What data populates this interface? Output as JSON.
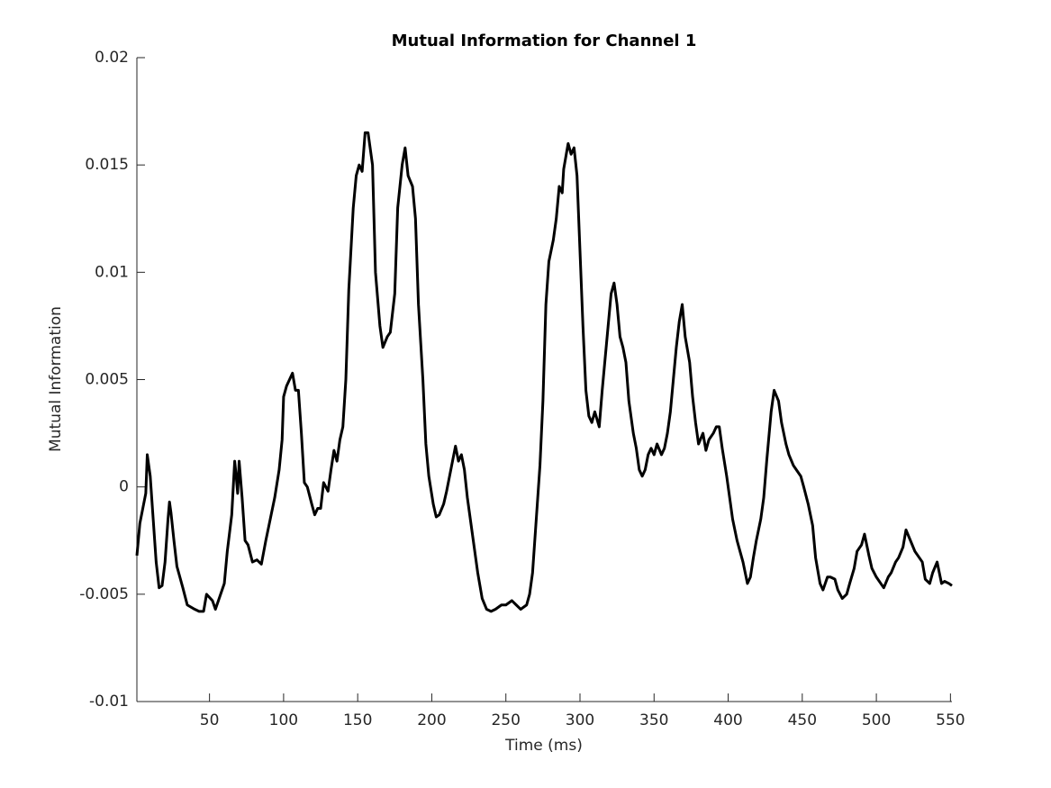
{
  "chart_data": {
    "type": "line",
    "title": "Mutual Information for Channel 1",
    "xlabel": "Time (ms)",
    "ylabel": "Mutual Information",
    "color": "#000000",
    "xlim": [
      1,
      551
    ],
    "xticks": [
      50,
      100,
      150,
      200,
      250,
      300,
      350,
      400,
      450,
      500,
      550
    ],
    "ylim": [
      -0.01,
      0.02
    ],
    "yticks": [
      -0.01,
      -0.005,
      0,
      0.005,
      0.01,
      0.015,
      0.02
    ],
    "grid": false,
    "x": [
      1,
      3,
      5,
      7,
      8,
      10,
      12,
      14,
      16,
      18,
      20,
      22,
      23,
      24,
      26,
      28,
      30,
      32,
      35,
      40,
      43,
      46,
      48,
      52,
      54,
      56,
      60,
      62,
      65,
      67,
      68,
      69,
      70,
      72,
      74,
      76,
      79,
      82,
      85,
      88,
      91,
      94,
      97,
      99,
      100,
      102,
      104,
      106,
      108,
      110,
      112,
      114,
      116,
      119,
      121,
      123,
      125,
      127,
      130,
      132,
      134,
      136,
      138,
      140,
      142,
      144,
      147,
      149,
      151,
      153,
      155,
      157,
      160,
      162,
      165,
      167,
      170,
      172,
      175,
      177,
      180,
      182,
      184,
      187,
      189,
      191,
      194,
      196,
      198,
      201,
      203,
      205,
      208,
      210,
      212,
      216,
      218,
      220,
      222,
      224,
      228,
      231,
      234,
      237,
      240,
      243,
      247,
      250,
      254,
      257,
      260,
      264,
      266,
      268,
      270,
      273,
      275,
      277,
      279,
      282,
      284,
      286,
      288,
      289,
      292,
      294,
      296,
      298,
      300,
      302,
      304,
      306,
      308,
      310,
      313,
      315,
      317,
      319,
      321,
      323,
      325,
      327,
      329,
      331,
      333,
      336,
      338,
      340,
      342,
      344,
      346,
      348,
      350,
      352,
      355,
      357,
      359,
      361,
      363,
      365,
      367,
      369,
      371,
      374,
      376,
      378,
      380,
      383,
      385,
      387,
      390,
      392,
      394,
      396,
      399,
      401,
      403,
      406,
      408,
      410,
      413,
      415,
      417,
      419,
      422,
      424,
      426,
      429,
      431,
      434,
      436,
      439,
      441,
      444,
      446,
      449,
      451,
      454,
      457,
      459,
      462,
      464,
      467,
      469,
      472,
      474,
      477,
      480,
      482,
      485,
      487,
      490,
      492,
      495,
      497,
      500,
      503,
      505,
      508,
      510,
      513,
      515,
      518,
      520,
      523,
      526,
      528,
      531,
      533,
      536,
      538,
      541,
      544,
      546,
      549,
      551
    ],
    "values": [
      -0.0032,
      -0.0017,
      -0.001,
      -0.0003,
      0.0015,
      0.0005,
      -0.0015,
      -0.0035,
      -0.0047,
      -0.0046,
      -0.0035,
      -0.0015,
      -0.0007,
      -0.0012,
      -0.0025,
      -0.0037,
      -0.0042,
      -0.0047,
      -0.0055,
      -0.0057,
      -0.0058,
      -0.0058,
      -0.005,
      -0.0053,
      -0.0057,
      -0.0053,
      -0.0045,
      -0.003,
      -0.0013,
      0.0012,
      0.0005,
      -0.0003,
      0.0012,
      -0.0005,
      -0.0025,
      -0.0027,
      -0.0035,
      -0.0034,
      -0.0036,
      -0.0025,
      -0.0015,
      -0.0005,
      0.0008,
      0.0022,
      0.0042,
      0.0047,
      0.005,
      0.0053,
      0.0045,
      0.0045,
      0.0025,
      0.0002,
      0,
      -0.0008,
      -0.0013,
      -0.001,
      -0.001,
      0.0002,
      -0.0002,
      0.0008,
      0.0017,
      0.0012,
      0.0022,
      0.0028,
      0.005,
      0.0092,
      0.013,
      0.0145,
      0.015,
      0.0147,
      0.0165,
      0.0165,
      0.015,
      0.01,
      0.0075,
      0.0065,
      0.007,
      0.0072,
      0.009,
      0.013,
      0.015,
      0.0158,
      0.0145,
      0.014,
      0.0125,
      0.0085,
      0.005,
      0.002,
      0.0005,
      -0.0008,
      -0.0014,
      -0.0013,
      -0.0008,
      -0.0002,
      0.0005,
      0.0019,
      0.0012,
      0.0015,
      0.0008,
      -0.0005,
      -0.0025,
      -0.004,
      -0.0052,
      -0.0057,
      -0.0058,
      -0.0057,
      -0.0055,
      -0.0055,
      -0.0053,
      -0.0055,
      -0.0057,
      -0.0055,
      -0.005,
      -0.004,
      -0.002,
      0.001,
      0.004,
      0.0085,
      0.0105,
      0.0115,
      0.0125,
      0.014,
      0.0137,
      0.0148,
      0.016,
      0.0155,
      0.0158,
      0.0145,
      0.011,
      0.0075,
      0.0045,
      0.0033,
      0.003,
      0.0035,
      0.0028,
      0.0045,
      0.006,
      0.0075,
      0.009,
      0.0095,
      0.0085,
      0.007,
      0.0065,
      0.0058,
      0.004,
      0.0025,
      0.0018,
      0.0008,
      0.0005,
      0.0008,
      0.0015,
      0.0018,
      0.0015,
      0.002,
      0.0015,
      0.0018,
      0.0025,
      0.0035,
      0.005,
      0.0065,
      0.0077,
      0.0085,
      0.007,
      0.0058,
      0.0042,
      0.003,
      0.002,
      0.0025,
      0.0017,
      0.0022,
      0.0025,
      0.0028,
      0.0028,
      0.0018,
      0.0005,
      -0.0005,
      -0.0015,
      -0.0025,
      -0.003,
      -0.0035,
      -0.0045,
      -0.0042,
      -0.0033,
      -0.0025,
      -0.0015,
      -0.0005,
      0.0012,
      0.0035,
      0.0045,
      0.004,
      0.003,
      0.002,
      0.0015,
      0.001,
      0.0008,
      0.0005,
      0,
      -0.0008,
      -0.0018,
      -0.0033,
      -0.0045,
      -0.0048,
      -0.0042,
      -0.0042,
      -0.0043,
      -0.0048,
      -0.0052,
      -0.005,
      -0.0045,
      -0.0038,
      -0.003,
      -0.0027,
      -0.0022,
      -0.0032,
      -0.0038,
      -0.0042,
      -0.0045,
      -0.0047,
      -0.0042,
      -0.004,
      -0.0035,
      -0.0033,
      -0.0028,
      -0.002,
      -0.0025,
      -0.003,
      -0.0032,
      -0.0035,
      -0.0043,
      -0.0045,
      -0.004,
      -0.0035,
      -0.0045,
      -0.0044,
      -0.0045,
      -0.0046
    ]
  }
}
